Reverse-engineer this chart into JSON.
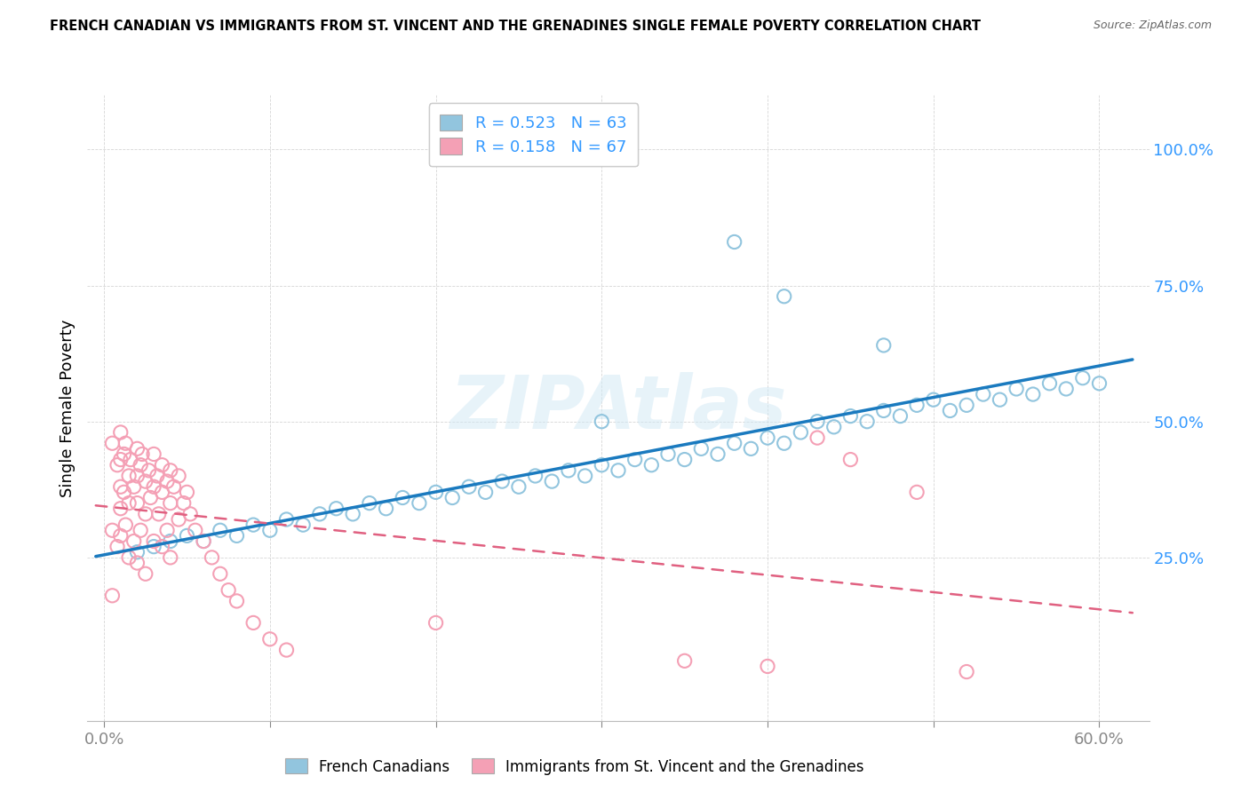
{
  "title": "FRENCH CANADIAN VS IMMIGRANTS FROM ST. VINCENT AND THE GRENADINES SINGLE FEMALE POVERTY CORRELATION CHART",
  "source": "Source: ZipAtlas.com",
  "ylabel": "Single Female Poverty",
  "ytick_labels": [
    "100.0%",
    "75.0%",
    "50.0%",
    "25.0%"
  ],
  "ytick_positions": [
    1.0,
    0.75,
    0.5,
    0.25
  ],
  "r_blue": 0.523,
  "n_blue": 63,
  "r_pink": 0.158,
  "n_pink": 67,
  "legend_bottom": [
    "French Canadians",
    "Immigrants from St. Vincent and the Grenadines"
  ],
  "blue_color": "#92c5de",
  "pink_color": "#f4a0b5",
  "blue_line_color": "#1a7abf",
  "pink_line_color": "#e06080",
  "tick_color": "#3399ff",
  "watermark_color": "#d0e8f5",
  "blue_x": [
    0.02,
    0.03,
    0.04,
    0.05,
    0.06,
    0.07,
    0.08,
    0.09,
    0.1,
    0.11,
    0.12,
    0.13,
    0.14,
    0.15,
    0.16,
    0.17,
    0.18,
    0.19,
    0.2,
    0.21,
    0.22,
    0.23,
    0.24,
    0.25,
    0.26,
    0.27,
    0.28,
    0.29,
    0.3,
    0.31,
    0.32,
    0.33,
    0.34,
    0.35,
    0.36,
    0.37,
    0.38,
    0.39,
    0.4,
    0.41,
    0.42,
    0.43,
    0.44,
    0.45,
    0.46,
    0.47,
    0.48,
    0.49,
    0.5,
    0.51,
    0.52,
    0.53,
    0.54,
    0.55,
    0.56,
    0.57,
    0.58,
    0.59,
    0.6,
    0.38,
    0.41,
    0.47,
    0.3
  ],
  "blue_y": [
    0.26,
    0.27,
    0.28,
    0.29,
    0.28,
    0.3,
    0.29,
    0.31,
    0.3,
    0.32,
    0.31,
    0.33,
    0.34,
    0.33,
    0.35,
    0.34,
    0.36,
    0.35,
    0.37,
    0.36,
    0.38,
    0.37,
    0.39,
    0.38,
    0.4,
    0.39,
    0.41,
    0.4,
    0.42,
    0.41,
    0.43,
    0.42,
    0.44,
    0.43,
    0.45,
    0.44,
    0.46,
    0.45,
    0.47,
    0.46,
    0.48,
    0.5,
    0.49,
    0.51,
    0.5,
    0.52,
    0.51,
    0.53,
    0.54,
    0.52,
    0.53,
    0.55,
    0.54,
    0.56,
    0.55,
    0.57,
    0.56,
    0.58,
    0.57,
    0.83,
    0.73,
    0.64,
    0.5
  ],
  "pink_x": [
    0.005,
    0.005,
    0.005,
    0.008,
    0.008,
    0.01,
    0.01,
    0.01,
    0.01,
    0.01,
    0.012,
    0.012,
    0.013,
    0.013,
    0.015,
    0.015,
    0.015,
    0.016,
    0.018,
    0.018,
    0.02,
    0.02,
    0.02,
    0.02,
    0.022,
    0.022,
    0.023,
    0.025,
    0.025,
    0.025,
    0.027,
    0.028,
    0.03,
    0.03,
    0.03,
    0.032,
    0.033,
    0.035,
    0.035,
    0.035,
    0.038,
    0.038,
    0.04,
    0.04,
    0.04,
    0.042,
    0.045,
    0.045,
    0.048,
    0.05,
    0.052,
    0.055,
    0.06,
    0.065,
    0.07,
    0.075,
    0.08,
    0.09,
    0.1,
    0.11,
    0.2,
    0.35,
    0.4,
    0.43,
    0.45,
    0.49,
    0.52
  ],
  "pink_y": [
    0.46,
    0.3,
    0.18,
    0.42,
    0.27,
    0.48,
    0.43,
    0.38,
    0.34,
    0.29,
    0.44,
    0.37,
    0.46,
    0.31,
    0.4,
    0.35,
    0.25,
    0.43,
    0.38,
    0.28,
    0.45,
    0.4,
    0.35,
    0.24,
    0.42,
    0.3,
    0.44,
    0.39,
    0.33,
    0.22,
    0.41,
    0.36,
    0.44,
    0.38,
    0.28,
    0.4,
    0.33,
    0.42,
    0.37,
    0.27,
    0.39,
    0.3,
    0.41,
    0.35,
    0.25,
    0.38,
    0.4,
    0.32,
    0.35,
    0.37,
    0.33,
    0.3,
    0.28,
    0.25,
    0.22,
    0.19,
    0.17,
    0.13,
    0.1,
    0.08,
    0.13,
    0.06,
    0.05,
    0.47,
    0.43,
    0.37,
    0.04
  ]
}
